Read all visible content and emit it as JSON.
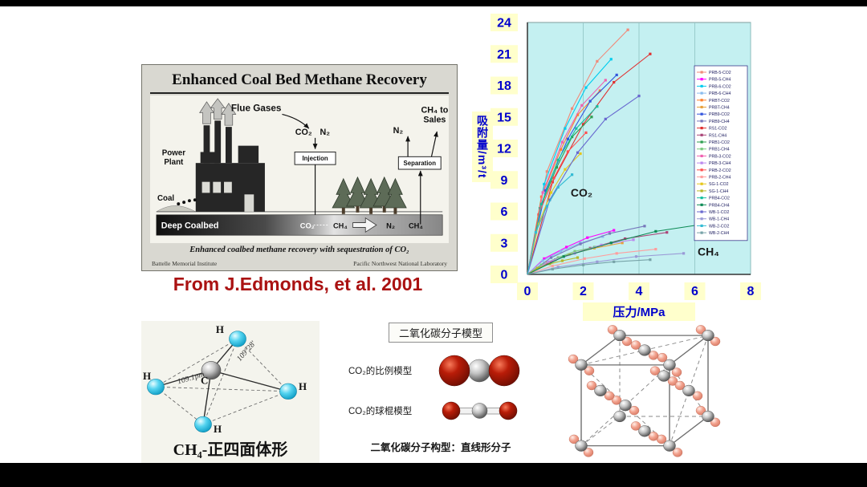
{
  "ecbm": {
    "title": "Enhanced Coal Bed Methane Recovery",
    "flue_gases": "Flue Gases",
    "co2": "CO₂",
    "n2": "N₂",
    "injection": "Injection",
    "separation": "Separation",
    "ch4_to_sales_1": "CH₄ to",
    "ch4_to_sales_2": "Sales",
    "vent_n2": "N₂",
    "power_plant_1": "Power",
    "power_plant_2": "Plant",
    "coal": "Coal",
    "deep_coalbed": "Deep Coalbed",
    "band_co2": "CO₂",
    "band_ch4": "CH₄",
    "band_n2": "N₂",
    "band_ch4_2": "CH₄",
    "caption": "Enhanced coalbed methane recovery with sequestration of CO₂",
    "credit_left": "Battelle Memorial Institute",
    "credit_right": "Pacific Northwest National Laboratory"
  },
  "attribution": "From J.Edmonds, et al. 2001",
  "chart_data": {
    "type": "line",
    "title": "",
    "xlabel": "压力/MPa",
    "ylabel": "吸附量/m³/t",
    "xlim": [
      0,
      8
    ],
    "ylim": [
      0,
      24
    ],
    "x_ticks": [
      0,
      2,
      4,
      6,
      8
    ],
    "y_ticks": [
      0,
      3,
      6,
      9,
      12,
      15,
      18,
      21,
      24
    ],
    "grid": "vertical",
    "legend_position": "right-inside",
    "plot_bg": "#c4f0f1",
    "tick_bg": "#ffffcc",
    "axis_color": "#0000cc",
    "annotations": [
      {
        "text": "CO₂",
        "x": 1.55,
        "y": 7.4
      },
      {
        "text": "CH₄",
        "x": 6.1,
        "y": 1.8
      }
    ],
    "series": [
      {
        "name": "PRB-5-CO2",
        "color": "#f08a7a",
        "x": [
          0,
          0.7,
          1.6,
          2.5,
          3.6
        ],
        "y": [
          0,
          9.8,
          15.8,
          20.3,
          23.3
        ]
      },
      {
        "name": "PRB-5-CH4",
        "color": "#ff00ff",
        "x": [
          0,
          0.6,
          1.4,
          2.15,
          3.1
        ],
        "y": [
          0,
          1.5,
          2.6,
          3.5,
          4.2
        ]
      },
      {
        "name": "PRB-6-CO2",
        "color": "#00ccee",
        "x": [
          0,
          0.6,
          1.35,
          2.1,
          3.0
        ],
        "y": [
          0,
          8.6,
          13.9,
          17.8,
          20.5
        ]
      },
      {
        "name": "PRB-6-CH4",
        "color": "#88bbee",
        "x": [
          0,
          0.55,
          1.2,
          1.9,
          2.7
        ],
        "y": [
          0,
          1.3,
          2.2,
          3.0,
          3.6
        ]
      },
      {
        "name": "PRBT-CO2",
        "color": "#ff7f2a",
        "x": [
          0,
          0.5,
          1.2,
          1.8,
          2.6
        ],
        "y": [
          0,
          7.4,
          11.9,
          15.2,
          17.5
        ]
      },
      {
        "name": "PRBT-CH4",
        "color": "#e8a13c",
        "x": [
          0,
          0.7,
          1.5,
          2.4,
          3.4
        ],
        "y": [
          0,
          1.1,
          1.9,
          2.5,
          3.0
        ]
      },
      {
        "name": "PRB9-CO2",
        "color": "#3355dd",
        "x": [
          0,
          0.65,
          1.45,
          2.25,
          3.2
        ],
        "y": [
          0,
          8.0,
          12.9,
          16.5,
          19.0
        ]
      },
      {
        "name": "PRB9-CH4",
        "color": "#7777bb",
        "x": [
          0,
          0.85,
          1.9,
          2.95,
          4.2
        ],
        "y": [
          0,
          1.6,
          2.9,
          3.9,
          4.6
        ]
      },
      {
        "name": "RS1-CO2",
        "color": "#e03030",
        "x": [
          0,
          0.9,
          2.0,
          3.1,
          4.4
        ],
        "y": [
          0,
          8.8,
          14.3,
          18.3,
          21.0
        ]
      },
      {
        "name": "RS1-CH4",
        "color": "#aa4477",
        "x": [
          0,
          1.0,
          2.25,
          3.5,
          5.0
        ],
        "y": [
          0,
          1.4,
          2.5,
          3.4,
          4.0
        ]
      },
      {
        "name": "PRB1-CO2",
        "color": "#2e9e4f",
        "x": [
          0,
          0.45,
          1.05,
          1.6,
          2.3
        ],
        "y": [
          0,
          6.3,
          10.2,
          13.1,
          15.0
        ]
      },
      {
        "name": "PRB1-CH4",
        "color": "#79c97e",
        "x": [
          0,
          0.5,
          1.1,
          1.7,
          2.4
        ],
        "y": [
          0,
          0.9,
          1.6,
          2.2,
          2.6
        ]
      },
      {
        "name": "PRB-3-CO2",
        "color": "#f060b0",
        "x": [
          0,
          0.55,
          1.25,
          1.95,
          2.8
        ],
        "y": [
          0,
          7.8,
          12.6,
          16.1,
          18.5
        ]
      },
      {
        "name": "PRB-3-CH4",
        "color": "#bb88ee",
        "x": [
          0,
          0.75,
          1.7,
          2.65,
          3.8
        ],
        "y": [
          0,
          1.2,
          2.0,
          2.8,
          3.3
        ]
      },
      {
        "name": "PRB-2-CO2",
        "color": "#ff5050",
        "x": [
          0,
          0.4,
          0.95,
          1.45,
          2.1
        ],
        "y": [
          0,
          5.7,
          9.2,
          11.7,
          13.5
        ]
      },
      {
        "name": "PRB-2-CH4",
        "color": "#ff9e9e",
        "x": [
          0,
          0.9,
          2.05,
          3.2,
          4.6
        ],
        "y": [
          0,
          0.8,
          1.5,
          2.0,
          2.4
        ]
      },
      {
        "name": "SG-1-CO2",
        "color": "#e6c619",
        "x": [
          0,
          0.4,
          0.85,
          1.35,
          1.9
        ],
        "y": [
          0,
          4.8,
          7.8,
          10.0,
          11.5
        ]
      },
      {
        "name": "SG-1-CH4",
        "color": "#b7b72a",
        "x": [
          0,
          0.35,
          0.8,
          1.25,
          1.8
        ],
        "y": [
          0,
          0.6,
          1.0,
          1.3,
          1.6
        ]
      },
      {
        "name": "PRB4-CO2",
        "color": "#18bfa0",
        "x": [
          0,
          0.5,
          1.1,
          1.75,
          2.5
        ],
        "y": [
          0,
          6.7,
          10.9,
          13.9,
          16.0
        ]
      },
      {
        "name": "PRB4-CH4",
        "color": "#0d8a55",
        "x": [
          0,
          1.3,
          3.0,
          4.6,
          6.6
        ],
        "y": [
          0,
          1.7,
          3.0,
          4.1,
          4.9
        ]
      },
      {
        "name": "WB-1-CO2",
        "color": "#6868cf",
        "x": [
          0,
          0.8,
          1.8,
          2.8,
          4.0
        ],
        "y": [
          0,
          7.1,
          11.6,
          14.8,
          17.0
        ]
      },
      {
        "name": "WB-1-CH4",
        "color": "#9a9ad6",
        "x": [
          0,
          1.1,
          2.5,
          3.9,
          5.6
        ],
        "y": [
          0,
          0.7,
          1.2,
          1.7,
          2.0
        ]
      },
      {
        "name": "WB-2-CO2",
        "color": "#33bbd4",
        "x": [
          0,
          0.3,
          0.7,
          1.1,
          1.6
        ],
        "y": [
          0,
          4.0,
          6.5,
          8.3,
          9.5
        ]
      },
      {
        "name": "WB-2-CH4",
        "color": "#77a3a8",
        "x": [
          0,
          0.9,
          2.0,
          3.1,
          4.4
        ],
        "y": [
          0,
          0.5,
          0.9,
          1.2,
          1.4
        ]
      }
    ]
  },
  "ch4_model": {
    "h_label": "H",
    "c_label": "C",
    "bond_length": "109.1pm",
    "bond_angle": "109°28'",
    "caption": "CH₄-正四面体形"
  },
  "co2_models": {
    "header": "二氧化碳分子模型",
    "space_filling_label": "CO₂的比例模型",
    "ball_stick_label": "CO₂的球棍模型",
    "caption": "二氧化碳分子构型：直线形分子"
  }
}
